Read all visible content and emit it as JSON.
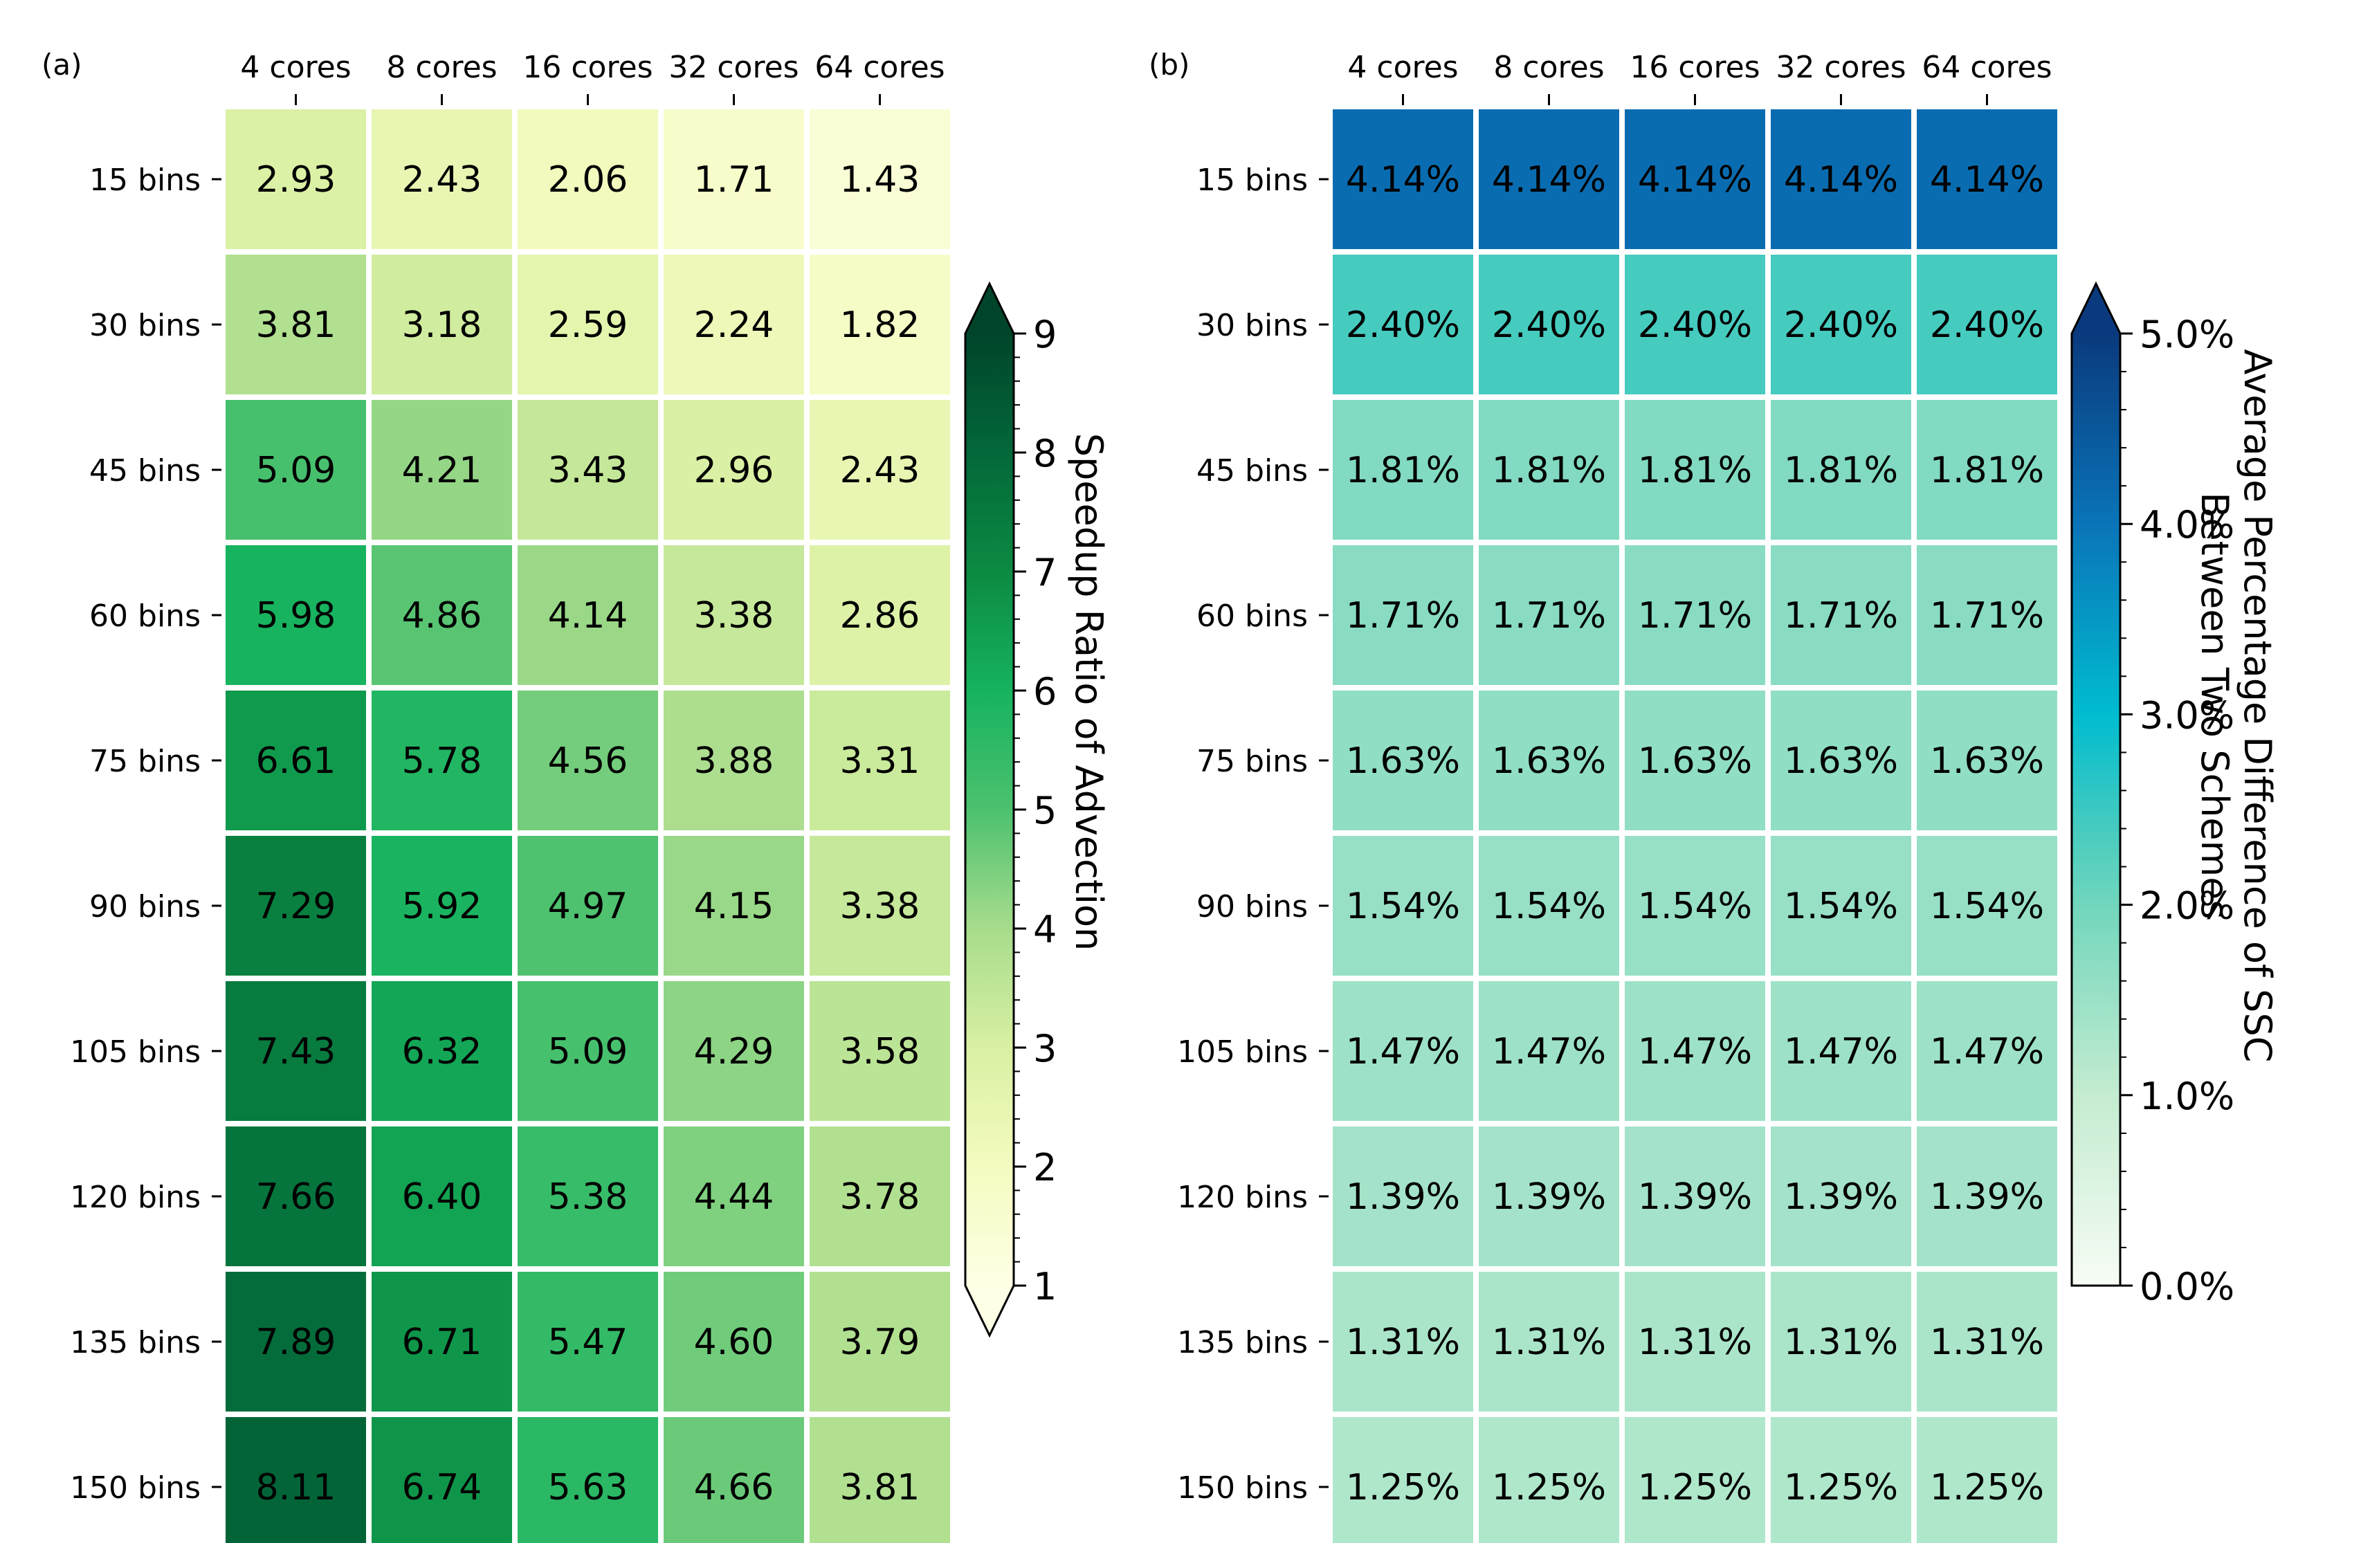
{
  "chart_data": [
    {
      "type": "heatmap",
      "panel_label": "(a)",
      "x_categories": [
        "4 cores",
        "8 cores",
        "16 cores",
        "32 cores",
        "64 cores"
      ],
      "y_categories": [
        "15 bins",
        "30 bins",
        "45 bins",
        "60 bins",
        "75 bins",
        "90 bins",
        "105 bins",
        "120 bins",
        "135 bins",
        "150 bins"
      ],
      "values": [
        [
          2.93,
          2.43,
          2.06,
          1.71,
          1.43
        ],
        [
          3.81,
          3.18,
          2.59,
          2.24,
          1.82
        ],
        [
          5.09,
          4.21,
          3.43,
          2.96,
          2.43
        ],
        [
          5.98,
          4.86,
          4.14,
          3.38,
          2.86
        ],
        [
          6.61,
          5.78,
          4.56,
          3.88,
          3.31
        ],
        [
          7.29,
          5.92,
          4.97,
          4.15,
          3.38
        ],
        [
          7.43,
          6.32,
          5.09,
          4.29,
          3.58
        ],
        [
          7.66,
          6.4,
          5.38,
          4.44,
          3.78
        ],
        [
          7.89,
          6.71,
          5.47,
          4.6,
          3.79
        ],
        [
          8.11,
          6.74,
          5.63,
          4.66,
          3.81
        ]
      ],
      "cell_labels": [
        [
          "2.93",
          "2.43",
          "2.06",
          "1.71",
          "1.43"
        ],
        [
          "3.81",
          "3.18",
          "2.59",
          "2.24",
          "1.82"
        ],
        [
          "5.09",
          "4.21",
          "3.43",
          "2.96",
          "2.43"
        ],
        [
          "5.98",
          "4.86",
          "4.14",
          "3.38",
          "2.86"
        ],
        [
          "6.61",
          "5.78",
          "4.56",
          "3.88",
          "3.31"
        ],
        [
          "7.29",
          "5.92",
          "4.97",
          "4.15",
          "3.38"
        ],
        [
          "7.43",
          "6.32",
          "5.09",
          "4.29",
          "3.58"
        ],
        [
          "7.66",
          "6.40",
          "5.38",
          "4.44",
          "3.78"
        ],
        [
          "7.89",
          "6.71",
          "5.47",
          "4.60",
          "3.79"
        ],
        [
          "8.11",
          "6.74",
          "5.63",
          "4.66",
          "3.81"
        ]
      ],
      "colorbar": {
        "label": "Speedup Ratio of Advection",
        "range": [
          1,
          9
        ],
        "ticks": [
          1,
          2,
          3,
          4,
          5,
          6,
          7,
          8,
          9
        ],
        "tick_labels": [
          "1",
          "2",
          "3",
          "4",
          "5",
          "6",
          "7",
          "8",
          "9"
        ],
        "extend": "both",
        "colormap": "YlGn-style",
        "stops": [
          {
            "v": 1,
            "color": "#ffffe5"
          },
          {
            "v": 2,
            "color": "#f4fbbf"
          },
          {
            "v": 3,
            "color": "#d9f0a3"
          },
          {
            "v": 4,
            "color": "#a7dc8c"
          },
          {
            "v": 5,
            "color": "#4cc16f"
          },
          {
            "v": 6,
            "color": "#16b35f"
          },
          {
            "v": 7,
            "color": "#0c8a42"
          },
          {
            "v": 8,
            "color": "#03683a"
          },
          {
            "v": 9,
            "color": "#00452a"
          }
        ]
      }
    },
    {
      "type": "heatmap",
      "panel_label": "(b)",
      "x_categories": [
        "4 cores",
        "8 cores",
        "16 cores",
        "32 cores",
        "64 cores"
      ],
      "y_categories": [
        "15 bins",
        "30 bins",
        "45 bins",
        "60 bins",
        "75 bins",
        "90 bins",
        "105 bins",
        "120 bins",
        "135 bins",
        "150 bins"
      ],
      "values": [
        [
          4.14,
          4.14,
          4.14,
          4.14,
          4.14
        ],
        [
          2.4,
          2.4,
          2.4,
          2.4,
          2.4
        ],
        [
          1.81,
          1.81,
          1.81,
          1.81,
          1.81
        ],
        [
          1.71,
          1.71,
          1.71,
          1.71,
          1.71
        ],
        [
          1.63,
          1.63,
          1.63,
          1.63,
          1.63
        ],
        [
          1.54,
          1.54,
          1.54,
          1.54,
          1.54
        ],
        [
          1.47,
          1.47,
          1.47,
          1.47,
          1.47
        ],
        [
          1.39,
          1.39,
          1.39,
          1.39,
          1.39
        ],
        [
          1.31,
          1.31,
          1.31,
          1.31,
          1.31
        ],
        [
          1.25,
          1.25,
          1.25,
          1.25,
          1.25
        ]
      ],
      "cell_labels": [
        [
          "4.14%",
          "4.14%",
          "4.14%",
          "4.14%",
          "4.14%"
        ],
        [
          "2.40%",
          "2.40%",
          "2.40%",
          "2.40%",
          "2.40%"
        ],
        [
          "1.81%",
          "1.81%",
          "1.81%",
          "1.81%",
          "1.81%"
        ],
        [
          "1.71%",
          "1.71%",
          "1.71%",
          "1.71%",
          "1.71%"
        ],
        [
          "1.63%",
          "1.63%",
          "1.63%",
          "1.63%",
          "1.63%"
        ],
        [
          "1.54%",
          "1.54%",
          "1.54%",
          "1.54%",
          "1.54%"
        ],
        [
          "1.47%",
          "1.47%",
          "1.47%",
          "1.47%",
          "1.47%"
        ],
        [
          "1.39%",
          "1.39%",
          "1.39%",
          "1.39%",
          "1.39%"
        ],
        [
          "1.31%",
          "1.31%",
          "1.31%",
          "1.31%",
          "1.31%"
        ],
        [
          "1.25%",
          "1.25%",
          "1.25%",
          "1.25%",
          "1.25%"
        ]
      ],
      "colorbar": {
        "label_lines": [
          "Average Percentage Difference of SSC",
          "Between Two Schemes"
        ],
        "range": [
          0,
          5
        ],
        "ticks": [
          0,
          1,
          2,
          3,
          4,
          5
        ],
        "tick_labels": [
          "0.0%",
          "1.0%",
          "2.0%",
          "3.0%",
          "4.0%",
          "5.0%"
        ],
        "extend": "max",
        "colormap": "GnBu-style",
        "stops": [
          {
            "v": 0,
            "color": "#f7fcf5"
          },
          {
            "v": 1,
            "color": "#c4ecd0"
          },
          {
            "v": 2,
            "color": "#71d6bd"
          },
          {
            "v": 2.4,
            "color": "#46cbbf"
          },
          {
            "v": 3,
            "color": "#00bcd0"
          },
          {
            "v": 4,
            "color": "#0a74b8"
          },
          {
            "v": 5,
            "color": "#0a3a7d"
          }
        ]
      }
    }
  ]
}
